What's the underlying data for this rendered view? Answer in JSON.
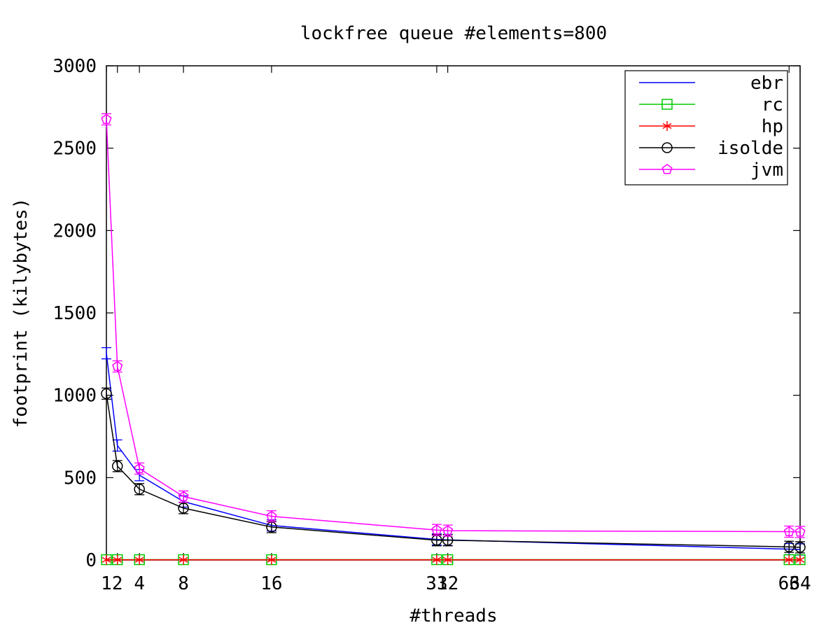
{
  "chart_data": {
    "type": "line",
    "title": "lockfree queue #elements=800",
    "xlabel": "#threads",
    "ylabel": "footprint (kilybytes)",
    "xlim": [
      1,
      64
    ],
    "ylim": [
      0,
      3000
    ],
    "xticks": [
      1,
      2,
      4,
      8,
      16,
      31,
      32,
      63,
      64
    ],
    "yticks": [
      0,
      500,
      1000,
      1500,
      2000,
      2500,
      3000
    ],
    "grid": false,
    "legend_position": "top-right",
    "series": [
      {
        "name": "ebr",
        "color": "#0000ff",
        "marker": "none",
        "error_bars": true,
        "x": [
          1,
          2,
          4,
          8,
          16,
          31,
          32,
          63,
          64
        ],
        "y": [
          1255,
          695,
          515,
          355,
          210,
          125,
          122,
          66,
          64
        ]
      },
      {
        "name": "rc",
        "color": "#00cc00",
        "marker": "square",
        "error_bars": false,
        "x": [
          1,
          2,
          4,
          8,
          16,
          31,
          32,
          63,
          64
        ],
        "y": [
          2,
          2,
          2,
          2,
          2,
          2,
          2,
          2,
          2
        ]
      },
      {
        "name": "hp",
        "color": "#ff0000",
        "marker": "star",
        "error_bars": false,
        "x": [
          1,
          2,
          4,
          8,
          16,
          31,
          32,
          63,
          64
        ],
        "y": [
          1,
          1,
          1,
          1,
          1,
          1,
          1,
          1,
          1
        ]
      },
      {
        "name": "isolde",
        "color": "#000000",
        "marker": "circle",
        "error_bars": true,
        "x": [
          1,
          2,
          4,
          8,
          16,
          31,
          32,
          63,
          64
        ],
        "y": [
          1010,
          570,
          430,
          315,
          200,
          120,
          120,
          80,
          77
        ]
      },
      {
        "name": "jvm",
        "color": "#ff00ff",
        "marker": "pentagon",
        "error_bars": true,
        "x": [
          1,
          2,
          4,
          8,
          16,
          31,
          32,
          63,
          64
        ],
        "y": [
          2675,
          1175,
          555,
          385,
          265,
          182,
          178,
          172,
          170
        ]
      }
    ]
  }
}
